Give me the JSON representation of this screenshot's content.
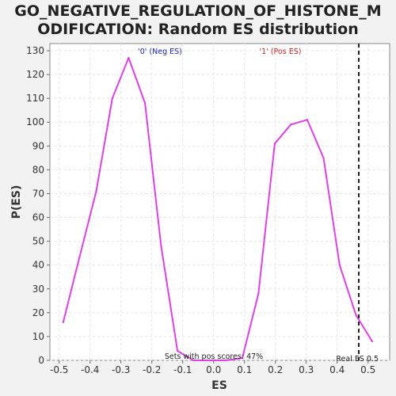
{
  "chart_data": {
    "type": "line",
    "title_lines": [
      "GO_NEGATIVE_REGULATION_OF_HISTONE_M",
      "ODIFICATION: Random ES distribution"
    ],
    "xlabel": "ES",
    "ylabel": "P(ES)",
    "xlim": [
      -0.53,
      0.57
    ],
    "ylim": [
      0,
      133
    ],
    "xticks": [
      -0.5,
      -0.4,
      -0.3,
      -0.2,
      -0.1,
      0.0,
      0.1,
      0.2,
      0.3,
      0.4,
      0.5
    ],
    "yticks": [
      0,
      10,
      20,
      30,
      40,
      50,
      60,
      70,
      80,
      90,
      100,
      110,
      120,
      130
    ],
    "grid": true,
    "series": [
      {
        "color": "#e040e8",
        "x": [
          -0.487,
          -0.435,
          -0.38,
          -0.328,
          -0.275,
          -0.222,
          -0.17,
          -0.117,
          -0.065,
          -0.012,
          0.04,
          0.093,
          0.145,
          0.198,
          0.25,
          0.303,
          0.356,
          0.408,
          0.461,
          0.513
        ],
        "y": [
          16,
          43,
          71,
          110,
          127,
          108,
          48,
          4,
          0,
          0,
          0,
          1,
          28,
          91,
          99,
          101,
          85,
          40,
          19,
          8
        ]
      }
    ],
    "annotations": {
      "neg_label": "'0' (Neg ES)",
      "pos_label": "'1' (Pos ES)",
      "pos_scores": "Sets with pos scores: 47%",
      "real_es": "Real ES 0.5"
    },
    "real_es_value": 0.47,
    "colors": {
      "neg_label": "#2222cc",
      "pos_label": "#cc2222",
      "real_es_line": "#222222"
    }
  }
}
